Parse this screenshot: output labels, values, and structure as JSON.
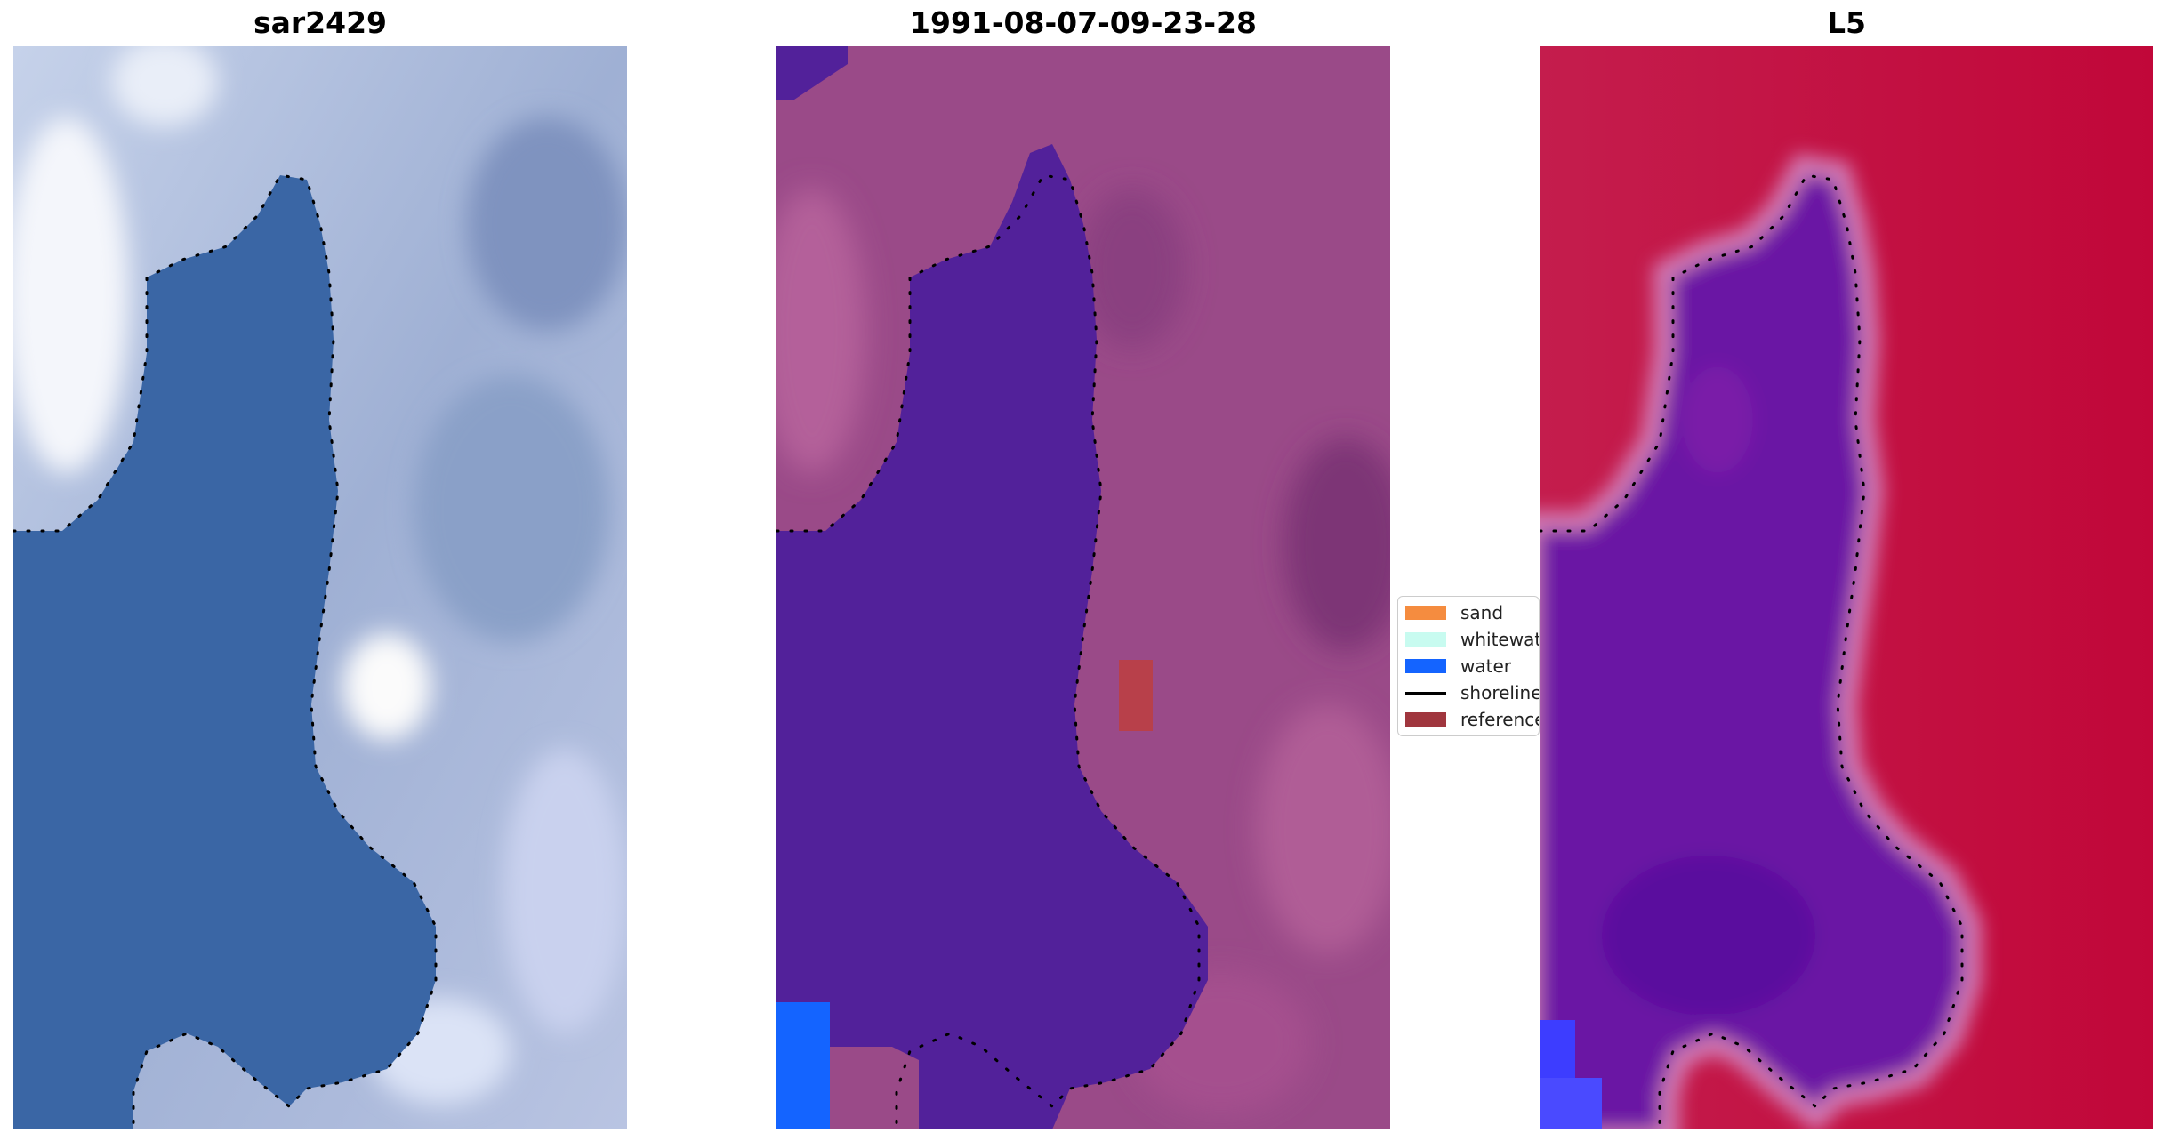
{
  "panels": [
    {
      "title": "sar2429",
      "image": "rgb-satellite-view"
    },
    {
      "title": "1991-08-07-09-23-28",
      "image": "classified-view"
    },
    {
      "title": "L5",
      "image": "mndwi-view"
    }
  ],
  "legend": [
    {
      "label": "sand",
      "color": "#f58c3f",
      "kind": "patch"
    },
    {
      "label": "whitewater",
      "color": "#c8fbf0",
      "kind": "patch"
    },
    {
      "label": "water",
      "color": "#1464ff",
      "kind": "patch"
    },
    {
      "label": "shoreline",
      "color": "#000000",
      "kind": "line"
    },
    {
      "label": "reference",
      "color": "#a0363e",
      "kind": "patch"
    }
  ],
  "colors": {
    "land_rgb": "#9fb0d4",
    "water_rgb": "#3a66a5",
    "land_class": "#9a4a88",
    "water_class": "#52219a",
    "land_index": "#c40a3c",
    "water_index": "#6a14a4",
    "shoreline": "#000000"
  }
}
